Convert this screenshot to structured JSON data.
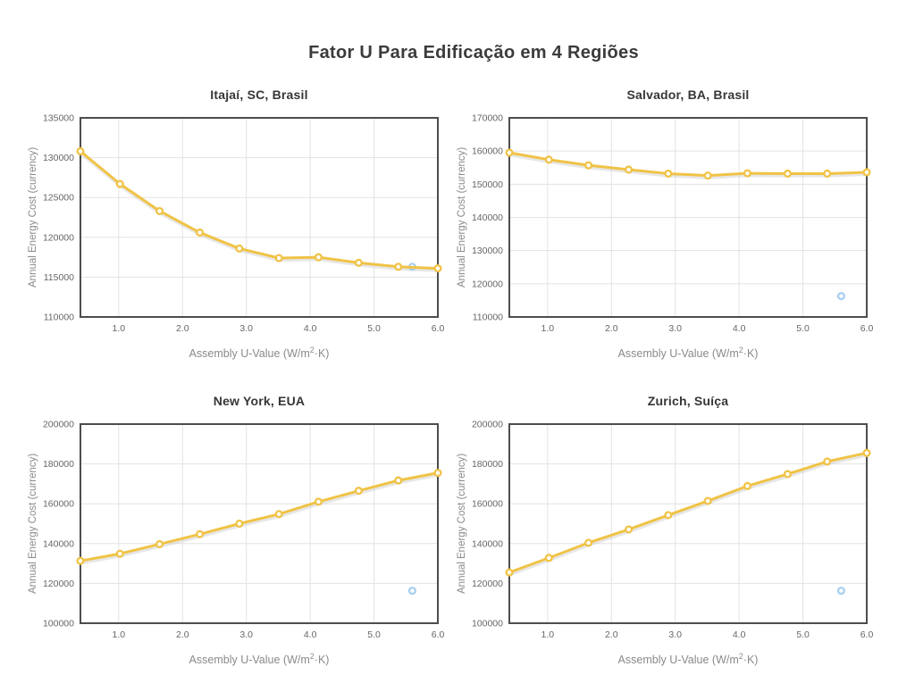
{
  "page": {
    "title": "Fator U Para Edificação em 4 Regiões"
  },
  "axis": {
    "ylabel": "Annual Energy Cost (currency)",
    "xlabel_prefix": "Assembly U-Value (W/m",
    "xlabel_sup": "2",
    "xlabel_suffix": "·K)"
  },
  "style": {
    "line_color": "#F0C346",
    "marker_fill": "#FFFFFF",
    "special_marker_color": "#A9CFF1",
    "shadow_color": "#C9C9C9",
    "grid_color": "#E3E3E3",
    "frame_color": "#4D4D4D",
    "tick_color": "#666666",
    "axis_label_color": "#8A8A8A",
    "title_color": "#3B3B3B"
  },
  "chart_data": [
    {
      "type": "line",
      "title": "Itajaí, SC, Brasil",
      "xlabel": "Assembly U-Value (W/m²·K)",
      "ylabel": "Annual Energy Cost (currency)",
      "x": [
        0.4,
        1.02,
        1.64,
        2.27,
        2.89,
        3.51,
        4.13,
        4.76,
        5.38,
        6.0
      ],
      "y": [
        130800,
        126700,
        123300,
        120600,
        118600,
        117400,
        117500,
        116800,
        116300,
        116100
      ],
      "special_point": {
        "x": 5.6,
        "y": 116300
      },
      "xlim": [
        0.4,
        6.0
      ],
      "ylim": [
        110000,
        135000
      ],
      "xticks": [
        1.0,
        2.0,
        3.0,
        4.0,
        5.0,
        6.0
      ],
      "yticks": [
        110000,
        115000,
        120000,
        125000,
        130000,
        135000
      ],
      "grid": true
    },
    {
      "type": "line",
      "title": "Salvador, BA, Brasil",
      "xlabel": "Assembly U-Value (W/m²·K)",
      "ylabel": "Annual Energy Cost (currency)",
      "x": [
        0.4,
        1.02,
        1.64,
        2.27,
        2.89,
        3.51,
        4.13,
        4.76,
        5.38,
        6.0
      ],
      "y": [
        159500,
        157400,
        155700,
        154400,
        153200,
        152600,
        153300,
        153200,
        153200,
        153600
      ],
      "special_point": {
        "x": 5.6,
        "y": 116300
      },
      "xlim": [
        0.4,
        6.0
      ],
      "ylim": [
        110000,
        170000
      ],
      "xticks": [
        1.0,
        2.0,
        3.0,
        4.0,
        5.0,
        6.0
      ],
      "yticks": [
        110000,
        120000,
        130000,
        140000,
        150000,
        160000,
        170000
      ],
      "grid": true
    },
    {
      "type": "line",
      "title": "New York, EUA",
      "xlabel": "Assembly U-Value (W/m²·K)",
      "ylabel": "Annual Energy Cost (currency)",
      "x": [
        0.4,
        1.02,
        1.64,
        2.27,
        2.89,
        3.51,
        4.13,
        4.76,
        5.38,
        6.0
      ],
      "y": [
        131300,
        134900,
        139700,
        144700,
        150000,
        154800,
        161000,
        166500,
        171700,
        175500
      ],
      "special_point": {
        "x": 5.6,
        "y": 116300
      },
      "xlim": [
        0.4,
        6.0
      ],
      "ylim": [
        100000,
        200000
      ],
      "xticks": [
        1.0,
        2.0,
        3.0,
        4.0,
        5.0,
        6.0
      ],
      "yticks": [
        100000,
        120000,
        140000,
        160000,
        180000,
        200000
      ],
      "grid": true
    },
    {
      "type": "line",
      "title": "Zurich, Suíça",
      "xlabel": "Assembly U-Value (W/m²·K)",
      "ylabel": "Annual Energy Cost (currency)",
      "x": [
        0.4,
        1.02,
        1.64,
        2.27,
        2.89,
        3.51,
        4.13,
        4.76,
        5.38,
        6.0
      ],
      "y": [
        125500,
        132800,
        140400,
        147100,
        154300,
        161400,
        168900,
        174900,
        181200,
        185500
      ],
      "special_point": {
        "x": 5.6,
        "y": 116300
      },
      "xlim": [
        0.4,
        6.0
      ],
      "ylim": [
        100000,
        200000
      ],
      "xticks": [
        1.0,
        2.0,
        3.0,
        4.0,
        5.0,
        6.0
      ],
      "yticks": [
        100000,
        120000,
        140000,
        160000,
        180000,
        200000
      ],
      "grid": true
    }
  ]
}
